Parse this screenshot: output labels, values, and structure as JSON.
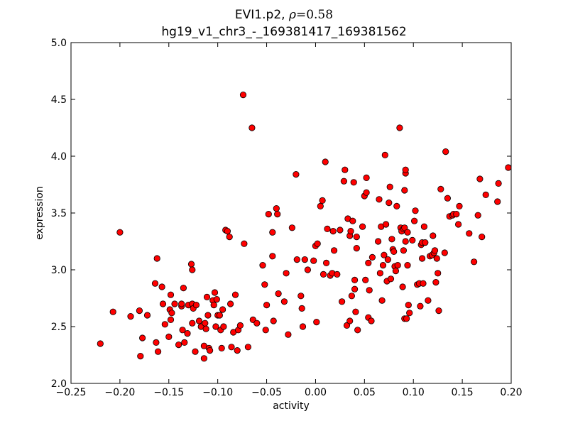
{
  "chart_data": {
    "type": "scatter",
    "title_line1_prefix": "EVI1.p2, ",
    "title_rho_symbol": "ρ",
    "title_rho_value": "=0.58",
    "title_line2": "hg19_v1_chr3_-_169381417_169381562",
    "xlabel": "activity",
    "ylabel": "expression",
    "xlim": [
      -0.25,
      0.2
    ],
    "ylim": [
      2.0,
      5.0
    ],
    "x_ticks": [
      -0.25,
      -0.2,
      -0.15,
      -0.1,
      -0.05,
      0.0,
      0.05,
      0.1,
      0.15,
      0.2
    ],
    "x_tick_labels": [
      "−0.25",
      "−0.20",
      "−0.15",
      "−0.10",
      "−0.05",
      "0.00",
      "0.05",
      "0.10",
      "0.15",
      "0.20"
    ],
    "y_ticks": [
      2.0,
      2.5,
      3.0,
      3.5,
      4.0,
      4.5,
      5.0
    ],
    "y_tick_labels": [
      "2.0",
      "2.5",
      "3.0",
      "3.5",
      "4.0",
      "4.5",
      "5.0"
    ],
    "grid": false,
    "marker_color": "#ff0000",
    "marker_edge_color": "#000000",
    "points": [
      [
        -0.22,
        2.35
      ],
      [
        -0.207,
        2.63
      ],
      [
        -0.2,
        3.33
      ],
      [
        -0.189,
        2.59
      ],
      [
        -0.18,
        2.64
      ],
      [
        -0.179,
        2.24
      ],
      [
        -0.177,
        2.4
      ],
      [
        -0.172,
        2.6
      ],
      [
        -0.164,
        2.88
      ],
      [
        -0.163,
        2.36
      ],
      [
        -0.162,
        3.1
      ],
      [
        -0.161,
        2.28
      ],
      [
        -0.157,
        2.85
      ],
      [
        -0.156,
        2.7
      ],
      [
        -0.154,
        2.52
      ],
      [
        -0.15,
        2.41
      ],
      [
        -0.149,
        2.65
      ],
      [
        -0.148,
        2.78
      ],
      [
        -0.148,
        2.56
      ],
      [
        -0.147,
        2.62
      ],
      [
        -0.144,
        2.7
      ],
      [
        -0.14,
        2.34
      ],
      [
        -0.137,
        2.68
      ],
      [
        -0.137,
        2.7
      ],
      [
        -0.136,
        2.47
      ],
      [
        -0.135,
        2.84
      ],
      [
        -0.134,
        2.36
      ],
      [
        -0.131,
        2.44
      ],
      [
        -0.13,
        2.69
      ],
      [
        -0.127,
        3.05
      ],
      [
        -0.126,
        2.53
      ],
      [
        -0.126,
        3.0
      ],
      [
        -0.126,
        2.7
      ],
      [
        -0.125,
        2.66
      ],
      [
        -0.123,
        2.28
      ],
      [
        -0.122,
        2.69
      ],
      [
        -0.119,
        2.55
      ],
      [
        -0.117,
        2.5
      ],
      [
        -0.114,
        2.33
      ],
      [
        -0.114,
        2.22
      ],
      [
        -0.113,
        2.53
      ],
      [
        -0.112,
        2.48
      ],
      [
        -0.111,
        2.76
      ],
      [
        -0.11,
        2.6
      ],
      [
        -0.109,
        2.31
      ],
      [
        -0.108,
        2.29
      ],
      [
        -0.105,
        2.73
      ],
      [
        -0.104,
        2.69
      ],
      [
        -0.103,
        2.8
      ],
      [
        -0.102,
        2.5
      ],
      [
        -0.101,
        2.74
      ],
      [
        -0.1,
        2.6
      ],
      [
        -0.098,
        2.6
      ],
      [
        -0.097,
        2.47
      ],
      [
        -0.096,
        2.31
      ],
      [
        -0.095,
        2.65
      ],
      [
        -0.094,
        2.5
      ],
      [
        -0.092,
        3.35
      ],
      [
        -0.09,
        3.34
      ],
      [
        -0.088,
        3.29
      ],
      [
        -0.087,
        2.7
      ],
      [
        -0.086,
        2.32
      ],
      [
        -0.084,
        2.45
      ],
      [
        -0.082,
        2.78
      ],
      [
        -0.08,
        2.29
      ],
      [
        -0.079,
        2.47
      ],
      [
        -0.077,
        2.51
      ],
      [
        -0.074,
        4.54
      ],
      [
        -0.073,
        3.23
      ],
      [
        -0.069,
        2.32
      ],
      [
        -0.065,
        4.25
      ],
      [
        -0.064,
        2.56
      ],
      [
        -0.06,
        2.53
      ],
      [
        -0.054,
        3.04
      ],
      [
        -0.052,
        2.87
      ],
      [
        -0.051,
        2.47
      ],
      [
        -0.05,
        2.69
      ],
      [
        -0.048,
        3.49
      ],
      [
        -0.044,
        3.12
      ],
      [
        -0.044,
        3.33
      ],
      [
        -0.043,
        2.55
      ],
      [
        -0.04,
        3.54
      ],
      [
        -0.039,
        3.49
      ],
      [
        -0.038,
        2.79
      ],
      [
        -0.032,
        2.72
      ],
      [
        -0.03,
        2.97
      ],
      [
        -0.028,
        2.43
      ],
      [
        -0.024,
        3.37
      ],
      [
        -0.02,
        3.84
      ],
      [
        -0.019,
        3.09
      ],
      [
        -0.015,
        2.77
      ],
      [
        -0.014,
        2.66
      ],
      [
        -0.013,
        2.5
      ],
      [
        -0.011,
        3.09
      ],
      [
        -0.008,
        3.0
      ],
      [
        -0.002,
        3.08
      ],
      [
        0.0,
        3.21
      ],
      [
        0.001,
        2.54
      ],
      [
        0.002,
        3.23
      ],
      [
        0.005,
        3.56
      ],
      [
        0.007,
        3.61
      ],
      [
        0.008,
        2.96
      ],
      [
        0.01,
        3.95
      ],
      [
        0.011,
        3.06
      ],
      [
        0.012,
        3.36
      ],
      [
        0.015,
        2.95
      ],
      [
        0.017,
        2.97
      ],
      [
        0.018,
        3.34
      ],
      [
        0.019,
        3.17
      ],
      [
        0.022,
        2.96
      ],
      [
        0.025,
        3.35
      ],
      [
        0.027,
        2.72
      ],
      [
        0.029,
        3.78
      ],
      [
        0.03,
        3.88
      ],
      [
        0.032,
        2.51
      ],
      [
        0.033,
        3.45
      ],
      [
        0.035,
        2.55
      ],
      [
        0.035,
        3.3
      ],
      [
        0.036,
        3.34
      ],
      [
        0.037,
        2.77
      ],
      [
        0.038,
        3.43
      ],
      [
        0.039,
        3.77
      ],
      [
        0.04,
        2.83
      ],
      [
        0.04,
        2.91
      ],
      [
        0.041,
        2.63
      ],
      [
        0.042,
        3.19
      ],
      [
        0.042,
        3.29
      ],
      [
        0.043,
        2.47
      ],
      [
        0.048,
        3.38
      ],
      [
        0.05,
        3.65
      ],
      [
        0.051,
        2.91
      ],
      [
        0.052,
        3.81
      ],
      [
        0.052,
        3.68
      ],
      [
        0.054,
        2.58
      ],
      [
        0.054,
        3.06
      ],
      [
        0.055,
        2.82
      ],
      [
        0.057,
        2.55
      ],
      [
        0.058,
        3.11
      ],
      [
        0.064,
        3.25
      ],
      [
        0.065,
        3.62
      ],
      [
        0.066,
        2.97
      ],
      [
        0.067,
        3.38
      ],
      [
        0.068,
        2.73
      ],
      [
        0.069,
        3.04
      ],
      [
        0.07,
        3.13
      ],
      [
        0.071,
        4.01
      ],
      [
        0.072,
        3.4
      ],
      [
        0.073,
        2.9
      ],
      [
        0.074,
        3.09
      ],
      [
        0.075,
        3.59
      ],
      [
        0.076,
        3.73
      ],
      [
        0.077,
        2.92
      ],
      [
        0.078,
        3.27
      ],
      [
        0.079,
        3.18
      ],
      [
        0.08,
        3.16
      ],
      [
        0.081,
        3.03
      ],
      [
        0.082,
        2.99
      ],
      [
        0.083,
        3.56
      ],
      [
        0.084,
        3.04
      ],
      [
        0.086,
        4.25
      ],
      [
        0.087,
        3.37
      ],
      [
        0.088,
        3.34
      ],
      [
        0.089,
        2.85
      ],
      [
        0.09,
        3.17
      ],
      [
        0.09,
        3.36
      ],
      [
        0.091,
        3.37
      ],
      [
        0.091,
        2.57
      ],
      [
        0.091,
        3.7
      ],
      [
        0.092,
        3.85
      ],
      [
        0.092,
        3.25
      ],
      [
        0.092,
        3.88
      ],
      [
        0.093,
        2.57
      ],
      [
        0.094,
        3.33
      ],
      [
        0.094,
        3.04
      ],
      [
        0.095,
        2.69
      ],
      [
        0.096,
        2.62
      ],
      [
        0.099,
        3.26
      ],
      [
        0.101,
        3.43
      ],
      [
        0.102,
        3.52
      ],
      [
        0.104,
        2.87
      ],
      [
        0.106,
        2.88
      ],
      [
        0.107,
        2.68
      ],
      [
        0.108,
        3.22
      ],
      [
        0.109,
        3.24
      ],
      [
        0.109,
        3.1
      ],
      [
        0.11,
        2.88
      ],
      [
        0.111,
        3.38
      ],
      [
        0.112,
        3.24
      ],
      [
        0.115,
        2.73
      ],
      [
        0.117,
        3.12
      ],
      [
        0.119,
        3.13
      ],
      [
        0.12,
        3.3
      ],
      [
        0.121,
        3.15
      ],
      [
        0.122,
        3.17
      ],
      [
        0.123,
        2.89
      ],
      [
        0.124,
        3.1
      ],
      [
        0.125,
        2.97
      ],
      [
        0.126,
        2.64
      ],
      [
        0.128,
        3.71
      ],
      [
        0.132,
        3.15
      ],
      [
        0.133,
        4.04
      ],
      [
        0.135,
        3.63
      ],
      [
        0.137,
        3.47
      ],
      [
        0.14,
        3.48
      ],
      [
        0.141,
        3.49
      ],
      [
        0.144,
        3.49
      ],
      [
        0.147,
        3.56
      ],
      [
        0.146,
        3.4
      ],
      [
        0.157,
        3.32
      ],
      [
        0.162,
        3.07
      ],
      [
        0.166,
        3.48
      ],
      [
        0.168,
        3.8
      ],
      [
        0.17,
        3.29
      ],
      [
        0.174,
        3.66
      ],
      [
        0.187,
        3.76
      ],
      [
        0.186,
        3.6
      ],
      [
        0.197,
        3.9
      ]
    ]
  }
}
